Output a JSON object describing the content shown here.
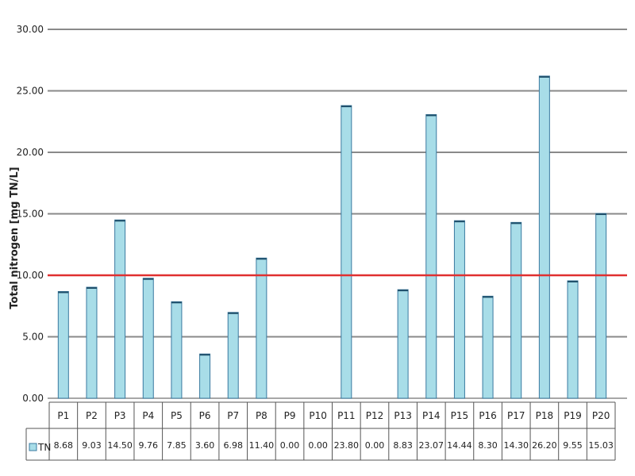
{
  "chart_data": {
    "type": "bar",
    "ylabel": "Total nitrogen [mg TN/L]",
    "ylim": [
      0,
      30
    ],
    "yticks": [
      "0.00",
      "5.00",
      "10.00",
      "15.00",
      "20.00",
      "25.00",
      "30.00"
    ],
    "reference_line": 10,
    "reference_color": "#e03030",
    "bar_color": "#a8dde8",
    "bar_edge_color": "#3a7aa0",
    "grid": true,
    "categories": [
      "P1",
      "P2",
      "P3",
      "P4",
      "P5",
      "P6",
      "P7",
      "P8",
      "P9",
      "P10",
      "P11",
      "P12",
      "P13",
      "P14",
      "P15",
      "P16",
      "P17",
      "P18",
      "P19",
      "P20"
    ],
    "series": [
      {
        "name": "TN",
        "values": [
          8.68,
          9.03,
          14.5,
          9.76,
          7.85,
          3.6,
          6.98,
          11.4,
          0.0,
          0.0,
          23.8,
          0.0,
          8.83,
          23.07,
          14.44,
          8.3,
          14.3,
          26.2,
          9.55,
          15.03
        ],
        "labels": [
          "8.68",
          "9.03",
          "14.50",
          "9.76",
          "7.85",
          "3.60",
          "6.98",
          "11.40",
          "0.00",
          "0.00",
          "23.80",
          "0.00",
          "8.83",
          "23.07",
          "14.44",
          "8.30",
          "14.30",
          "26.20",
          "9.55",
          "15.03"
        ]
      }
    ]
  }
}
